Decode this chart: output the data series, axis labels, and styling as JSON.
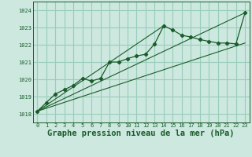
{
  "bg_color": "#cce8df",
  "grid_color": "#99ccbb",
  "line_color": "#1a5c2a",
  "xlabel": "Graphe pression niveau de la mer (hPa)",
  "xlabel_fontsize": 7.5,
  "xlim": [
    -0.5,
    23.5
  ],
  "ylim": [
    1017.5,
    1024.5
  ],
  "yticks": [
    1018,
    1019,
    1020,
    1021,
    1022,
    1023,
    1024
  ],
  "xticks": [
    0,
    1,
    2,
    3,
    4,
    5,
    6,
    7,
    8,
    9,
    10,
    11,
    12,
    13,
    14,
    15,
    16,
    17,
    18,
    19,
    20,
    21,
    22,
    23
  ],
  "series1_x": [
    0,
    1,
    2,
    3,
    4,
    5,
    6,
    7,
    8,
    9,
    10,
    11,
    12,
    13,
    14,
    15,
    16,
    17,
    18,
    19,
    20,
    21,
    22,
    23
  ],
  "series1_y": [
    1018.15,
    1018.65,
    1019.15,
    1019.4,
    1019.65,
    1020.05,
    1019.9,
    1020.05,
    1021.0,
    1021.0,
    1021.2,
    1021.35,
    1021.45,
    1022.05,
    1023.1,
    1022.85,
    1022.55,
    1022.45,
    1022.3,
    1022.2,
    1022.1,
    1022.1,
    1022.05,
    1023.85
  ],
  "series2_x": [
    0,
    23
  ],
  "series2_y": [
    1018.15,
    1023.85
  ],
  "series3_x": [
    0,
    14
  ],
  "series3_y": [
    1018.15,
    1023.1
  ],
  "series4_x": [
    0,
    23
  ],
  "series4_y": [
    1018.15,
    1022.1
  ]
}
